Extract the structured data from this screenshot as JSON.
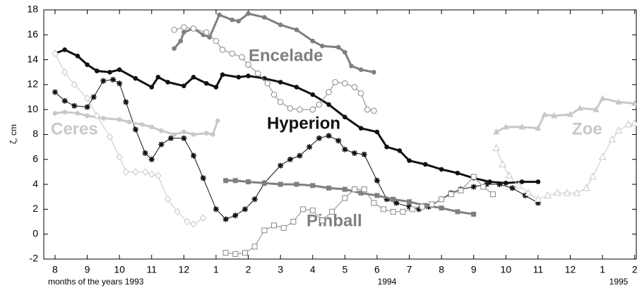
{
  "chart_data": {
    "type": "line",
    "y_label": "ζ, cm",
    "x_label": "months of the years  1993",
    "year_labels": [
      "1994",
      "1995"
    ],
    "xlim": [
      -0.35,
      18.05
    ],
    "ylim": [
      -2,
      18
    ],
    "yticks": [
      -2,
      0,
      2,
      4,
      6,
      8,
      10,
      12,
      14,
      16,
      18
    ],
    "xticks": [
      {
        "value": 0,
        "label": "8"
      },
      {
        "value": 1,
        "label": "9"
      },
      {
        "value": 2,
        "label": "10"
      },
      {
        "value": 3,
        "label": "11"
      },
      {
        "value": 4,
        "label": "12"
      },
      {
        "value": 5,
        "label": "1"
      },
      {
        "value": 6,
        "label": "2"
      },
      {
        "value": 7,
        "label": "3"
      },
      {
        "value": 8,
        "label": "4"
      },
      {
        "value": 9,
        "label": "5"
      },
      {
        "value": 10,
        "label": "6"
      },
      {
        "value": 11,
        "label": "7"
      },
      {
        "value": 12,
        "label": "8"
      },
      {
        "value": 13,
        "label": "9"
      },
      {
        "value": 14,
        "label": "10"
      },
      {
        "value": 15,
        "label": "11"
      },
      {
        "value": 16,
        "label": "12"
      },
      {
        "value": 17,
        "label": "1"
      },
      {
        "value": 18,
        "label": "2"
      }
    ],
    "grid": false,
    "series": [
      {
        "name": "Hyperion",
        "color": "#111111",
        "marker": "dot",
        "x": [
          0,
          0.3,
          0.7,
          1,
          1.3,
          1.7,
          2,
          2.5,
          3,
          3.2,
          3.5,
          4,
          4.3,
          4.7,
          5,
          5.2,
          5.7,
          6,
          6.5,
          7,
          7.5,
          8,
          8.5,
          9,
          9.5,
          10,
          10.3,
          10.7,
          11,
          11.5,
          12,
          12.5,
          13,
          13.5,
          14,
          14.5,
          15
        ],
        "values": [
          14.5,
          14.8,
          14.3,
          13.6,
          13.1,
          13.0,
          13.2,
          12.5,
          11.8,
          12.6,
          12.2,
          11.9,
          12.6,
          12.1,
          11.8,
          12.8,
          12.6,
          12.7,
          12.5,
          12.2,
          11.8,
          11.2,
          10.4,
          9.4,
          8.5,
          8.2,
          7.0,
          6.7,
          5.9,
          5.6,
          5.2,
          4.9,
          4.5,
          4.2,
          4.1,
          4.2,
          4.2
        ]
      },
      {
        "color": "#111111",
        "marker": "star",
        "x": [
          0,
          0.3,
          0.6,
          1,
          1.2,
          1.5,
          1.8,
          2,
          2.2,
          2.5,
          2.8,
          3,
          3.3,
          3.6,
          4,
          4.3,
          4.6,
          5,
          5.3,
          5.6,
          5.9,
          6.2,
          6.5,
          7,
          7.3,
          7.6,
          7.9,
          8.2,
          8.5,
          8.8,
          9,
          9.3,
          9.6,
          10,
          10.3,
          10.6,
          11,
          11.3,
          11.6,
          12,
          12.3,
          12.6,
          13,
          13.4,
          13.8,
          14.2,
          14.6,
          15
        ],
        "values": [
          11.4,
          10.7,
          10.3,
          10.2,
          11.0,
          12.3,
          12.4,
          12.1,
          10.6,
          8.4,
          6.5,
          6.0,
          7.2,
          7.7,
          7.7,
          6.3,
          4.5,
          2.0,
          1.2,
          1.5,
          2.0,
          2.8,
          4.1,
          5.5,
          6.0,
          6.3,
          7.0,
          7.7,
          7.9,
          7.5,
          6.8,
          6.5,
          6.4,
          4.3,
          2.8,
          2.5,
          2.2,
          2.0,
          2.2,
          2.8,
          3.3,
          3.6,
          3.8,
          4.0,
          4.0,
          3.7,
          3.1,
          2.5
        ]
      },
      {
        "name": "Encelade",
        "color": "#7f7f7f",
        "marker": "dot",
        "x": [
          3.7,
          3.9,
          4,
          4.3,
          4.6,
          4.8,
          5.1,
          5.5,
          5.7,
          6,
          6.5,
          7,
          7.5,
          8,
          8.3,
          8.8,
          9,
          9.2,
          9.5,
          9.9
        ],
        "values": [
          14.9,
          15.5,
          16.2,
          16.5,
          16.0,
          15.8,
          17.6,
          17.2,
          17.1,
          17.7,
          17.4,
          16.8,
          16.4,
          15.5,
          15.1,
          15.0,
          14.6,
          13.5,
          13.2,
          13.0
        ]
      },
      {
        "color": "#888888",
        "marker": "open-circle",
        "x": [
          3.7,
          4,
          4.3,
          4.7,
          5,
          5.2,
          5.5,
          5.8,
          6,
          6.3,
          6.6,
          6.8,
          7,
          7.3,
          7.6,
          8,
          8.2,
          8.5,
          8.7,
          9,
          9.3,
          9.5,
          9.7,
          9.9
        ],
        "values": [
          16.4,
          16.6,
          16.5,
          16.2,
          15.5,
          14.8,
          14.5,
          14.2,
          13.6,
          12.9,
          12.1,
          11.2,
          10.6,
          10.1,
          10.0,
          10.0,
          10.4,
          11.4,
          12.2,
          12.1,
          11.8,
          11.3,
          10.0,
          9.9
        ]
      },
      {
        "name": "Ceres",
        "color": "#c8c8c8",
        "marker": "dot",
        "x": [
          0,
          0.3,
          0.7,
          1,
          1.5,
          2,
          2.3,
          2.7,
          3,
          3.3,
          3.7,
          4,
          4.3,
          4.7,
          4.9,
          5.05
        ],
        "values": [
          9.7,
          9.8,
          9.7,
          9.5,
          9.3,
          9.2,
          9.0,
          8.8,
          8.6,
          8.3,
          8.0,
          8.2,
          8.0,
          8.1,
          8.0,
          9.1
        ]
      },
      {
        "color": "#c8c8c8",
        "marker": "open-diamond",
        "x": [
          0,
          0.3,
          0.6,
          1,
          1.3,
          1.7,
          2,
          2.2,
          2.5,
          2.8,
          3,
          3.2,
          3.5,
          3.8,
          4.1,
          4.3,
          4.6
        ],
        "values": [
          14.5,
          13.0,
          12.0,
          10.9,
          9.5,
          7.8,
          6.2,
          5.0,
          5.0,
          5.0,
          4.8,
          4.7,
          2.8,
          1.8,
          1.0,
          0.8,
          1.3
        ]
      },
      {
        "name": "Pinball",
        "color": "#7f7f7f",
        "marker": "square",
        "x": [
          5.3,
          5.6,
          6,
          6.5,
          7,
          7.5,
          8,
          8.5,
          9,
          9.5,
          10,
          10.5,
          11,
          11.5,
          12,
          12.5,
          13
        ],
        "values": [
          4.3,
          4.3,
          4.2,
          4.1,
          4.0,
          4.0,
          3.9,
          3.7,
          3.6,
          3.3,
          3.1,
          2.8,
          2.6,
          2.3,
          2.1,
          1.8,
          1.6
        ]
      },
      {
        "color": "#888888",
        "marker": "open-square",
        "x": [
          5.3,
          5.6,
          5.9,
          6.2,
          6.5,
          6.8,
          7.1,
          7.4,
          7.7,
          8,
          8.3,
          8.6,
          9,
          9.3,
          9.6,
          9.9,
          10.2,
          10.5,
          10.8,
          11.1,
          11.4,
          11.7,
          12,
          12.3,
          12.6,
          13,
          13.3,
          13.6
        ],
        "values": [
          -1.5,
          -1.6,
          -1.5,
          -1.0,
          0.3,
          0.7,
          0.5,
          1.0,
          2.0,
          1.9,
          1.1,
          1.8,
          2.9,
          3.6,
          3.6,
          2.5,
          2.0,
          1.8,
          1.8,
          2.0,
          2.2,
          2.4,
          2.8,
          3.2,
          3.5,
          4.6,
          3.8,
          3.2
        ]
      },
      {
        "name": "Zoe",
        "color": "#c8c8c8",
        "marker": "triangle",
        "x": [
          13.7,
          14,
          14.5,
          15,
          15.2,
          15.5,
          16,
          16.3,
          16.8,
          17,
          17.5,
          18
        ],
        "values": [
          8.2,
          8.6,
          8.6,
          8.5,
          9.6,
          9.5,
          9.6,
          10.1,
          10.0,
          10.9,
          10.6,
          10.5
        ]
      },
      {
        "color": "#c8c8c8",
        "marker": "open-triangle",
        "x": [
          13.7,
          13.9,
          14.1,
          14.4,
          14.7,
          15,
          15.3,
          15.6,
          15.9,
          16.2,
          16.5,
          16.7,
          17,
          17.3,
          17.5,
          17.8,
          18
        ],
        "values": [
          6.9,
          5.6,
          4.7,
          3.9,
          3.3,
          2.8,
          3.1,
          3.3,
          3.3,
          3.3,
          3.7,
          4.6,
          6.2,
          7.6,
          8.3,
          8.8,
          8.9
        ]
      }
    ]
  }
}
